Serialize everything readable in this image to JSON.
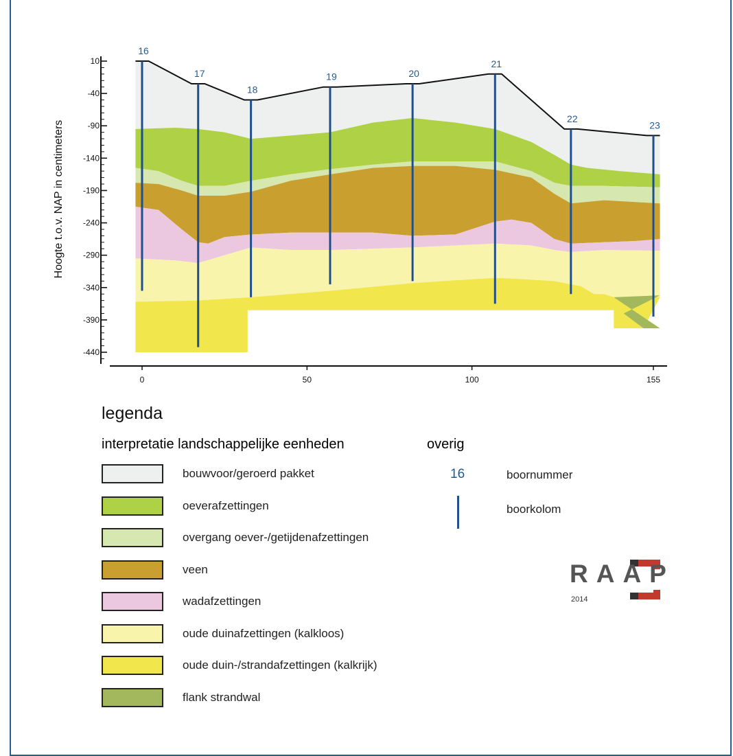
{
  "chart_data": {
    "type": "area",
    "ylabel": "Hoogte t.o.v. NAP in centimeters",
    "yticks": [
      10,
      -40,
      -90,
      -140,
      -190,
      -240,
      -290,
      -340,
      -390,
      -440
    ],
    "xticks": [
      0,
      50,
      100,
      155
    ],
    "xlim": [
      -2,
      158
    ],
    "ylim": [
      -455,
      15
    ],
    "boreholes": [
      {
        "label": "16",
        "x": 0,
        "top": 10,
        "bottom": -345
      },
      {
        "label": "17",
        "x": 17,
        "top": -25,
        "bottom": -432
      },
      {
        "label": "18",
        "x": 33,
        "top": -50,
        "bottom": -355
      },
      {
        "label": "19",
        "x": 57,
        "top": -30,
        "bottom": -335
      },
      {
        "label": "20",
        "x": 82,
        "top": -25,
        "bottom": -330
      },
      {
        "label": "21",
        "x": 107,
        "top": -10,
        "bottom": -365
      },
      {
        "label": "22",
        "x": 130,
        "top": -95,
        "bottom": -350
      },
      {
        "label": "23",
        "x": 155,
        "top": -105,
        "bottom": -385
      }
    ],
    "layers": [
      {
        "key": "bouwvoor",
        "top": [
          [
            -2,
            10
          ],
          [
            2,
            10
          ],
          [
            15,
            -25
          ],
          [
            19,
            -25
          ],
          [
            31,
            -50
          ],
          [
            35,
            -50
          ],
          [
            55,
            -30
          ],
          [
            59,
            -30
          ],
          [
            80,
            -25
          ],
          [
            84,
            -25
          ],
          [
            105,
            -10
          ],
          [
            109,
            -10
          ],
          [
            128,
            -95
          ],
          [
            132,
            -95
          ],
          [
            153,
            -105
          ],
          [
            157,
            -105
          ]
        ],
        "bottom": [
          [
            -2,
            -95
          ],
          [
            10,
            -93
          ],
          [
            17,
            -95
          ],
          [
            25,
            -100
          ],
          [
            33,
            -110
          ],
          [
            45,
            -105
          ],
          [
            57,
            -100
          ],
          [
            70,
            -85
          ],
          [
            82,
            -78
          ],
          [
            95,
            -85
          ],
          [
            107,
            -95
          ],
          [
            118,
            -115
          ],
          [
            125,
            -135
          ],
          [
            130,
            -150
          ],
          [
            135,
            -155
          ],
          [
            145,
            -160
          ],
          [
            157,
            -165
          ]
        ]
      },
      {
        "key": "oever",
        "top": [
          [
            -2,
            -95
          ],
          [
            10,
            -93
          ],
          [
            17,
            -95
          ],
          [
            25,
            -100
          ],
          [
            33,
            -110
          ],
          [
            45,
            -105
          ],
          [
            57,
            -100
          ],
          [
            70,
            -85
          ],
          [
            82,
            -78
          ],
          [
            95,
            -85
          ],
          [
            107,
            -95
          ],
          [
            118,
            -115
          ],
          [
            125,
            -135
          ],
          [
            130,
            -150
          ],
          [
            135,
            -155
          ],
          [
            145,
            -160
          ],
          [
            157,
            -165
          ]
        ],
        "bottom": [
          [
            -2,
            -155
          ],
          [
            5,
            -160
          ],
          [
            12,
            -175
          ],
          [
            17,
            -183
          ],
          [
            25,
            -183
          ],
          [
            33,
            -175
          ],
          [
            45,
            -165
          ],
          [
            57,
            -157
          ],
          [
            70,
            -150
          ],
          [
            82,
            -145
          ],
          [
            95,
            -145
          ],
          [
            107,
            -145
          ],
          [
            118,
            -160
          ],
          [
            125,
            -178
          ],
          [
            130,
            -183
          ],
          [
            140,
            -183
          ],
          [
            157,
            -185
          ]
        ]
      },
      {
        "key": "overgang",
        "top": [
          [
            -2,
            -155
          ],
          [
            5,
            -160
          ],
          [
            12,
            -175
          ],
          [
            17,
            -183
          ],
          [
            25,
            -183
          ],
          [
            33,
            -175
          ],
          [
            45,
            -165
          ],
          [
            57,
            -157
          ],
          [
            70,
            -150
          ],
          [
            82,
            -145
          ],
          [
            95,
            -145
          ],
          [
            107,
            -145
          ],
          [
            118,
            -160
          ],
          [
            125,
            -178
          ],
          [
            130,
            -183
          ],
          [
            140,
            -183
          ],
          [
            157,
            -185
          ]
        ],
        "bottom": [
          [
            -2,
            -178
          ],
          [
            5,
            -180
          ],
          [
            12,
            -190
          ],
          [
            17,
            -198
          ],
          [
            25,
            -198
          ],
          [
            33,
            -192
          ],
          [
            45,
            -175
          ],
          [
            57,
            -165
          ],
          [
            70,
            -155
          ],
          [
            82,
            -152
          ],
          [
            95,
            -152
          ],
          [
            107,
            -158
          ],
          [
            118,
            -170
          ],
          [
            125,
            -195
          ],
          [
            130,
            -210
          ],
          [
            140,
            -205
          ],
          [
            157,
            -210
          ]
        ]
      },
      {
        "key": "veen",
        "top": [
          [
            -2,
            -178
          ],
          [
            5,
            -180
          ],
          [
            12,
            -190
          ],
          [
            17,
            -198
          ],
          [
            25,
            -198
          ],
          [
            33,
            -192
          ],
          [
            45,
            -175
          ],
          [
            57,
            -165
          ],
          [
            70,
            -155
          ],
          [
            82,
            -152
          ],
          [
            95,
            -152
          ],
          [
            107,
            -158
          ],
          [
            118,
            -170
          ],
          [
            125,
            -195
          ],
          [
            130,
            -210
          ],
          [
            140,
            -205
          ],
          [
            157,
            -210
          ]
        ],
        "bottom": [
          [
            -2,
            -215
          ],
          [
            5,
            -220
          ],
          [
            12,
            -250
          ],
          [
            17,
            -270
          ],
          [
            20,
            -272
          ],
          [
            25,
            -262
          ],
          [
            33,
            -258
          ],
          [
            45,
            -255
          ],
          [
            57,
            -255
          ],
          [
            70,
            -255
          ],
          [
            82,
            -260
          ],
          [
            95,
            -258
          ],
          [
            107,
            -238
          ],
          [
            112,
            -235
          ],
          [
            118,
            -240
          ],
          [
            125,
            -265
          ],
          [
            130,
            -272
          ],
          [
            140,
            -270
          ],
          [
            150,
            -268
          ],
          [
            157,
            -265
          ]
        ]
      },
      {
        "key": "wad",
        "top": [
          [
            -2,
            -215
          ],
          [
            5,
            -220
          ],
          [
            12,
            -250
          ],
          [
            17,
            -270
          ],
          [
            20,
            -272
          ],
          [
            25,
            -262
          ],
          [
            33,
            -258
          ],
          [
            45,
            -255
          ],
          [
            57,
            -255
          ],
          [
            70,
            -255
          ],
          [
            82,
            -260
          ],
          [
            95,
            -258
          ],
          [
            107,
            -238
          ],
          [
            112,
            -235
          ],
          [
            118,
            -240
          ],
          [
            125,
            -265
          ],
          [
            130,
            -272
          ],
          [
            140,
            -270
          ],
          [
            150,
            -268
          ],
          [
            157,
            -265
          ]
        ],
        "bottom": [
          [
            -2,
            -295
          ],
          [
            10,
            -298
          ],
          [
            17,
            -302
          ],
          [
            25,
            -290
          ],
          [
            33,
            -278
          ],
          [
            45,
            -282
          ],
          [
            57,
            -282
          ],
          [
            70,
            -280
          ],
          [
            82,
            -278
          ],
          [
            95,
            -275
          ],
          [
            107,
            -272
          ],
          [
            118,
            -275
          ],
          [
            125,
            -282
          ],
          [
            130,
            -285
          ],
          [
            140,
            -282
          ],
          [
            157,
            -283
          ]
        ]
      },
      {
        "key": "oudeduin",
        "top": [
          [
            -2,
            -295
          ],
          [
            10,
            -298
          ],
          [
            17,
            -302
          ],
          [
            25,
            -290
          ],
          [
            33,
            -278
          ],
          [
            45,
            -282
          ],
          [
            57,
            -282
          ],
          [
            70,
            -280
          ],
          [
            82,
            -278
          ],
          [
            95,
            -275
          ],
          [
            107,
            -272
          ],
          [
            118,
            -275
          ],
          [
            125,
            -282
          ],
          [
            130,
            -285
          ],
          [
            140,
            -282
          ],
          [
            157,
            -283
          ]
        ],
        "bottom": [
          [
            -2,
            -362
          ],
          [
            17,
            -360
          ],
          [
            33,
            -355
          ],
          [
            57,
            -345
          ],
          [
            82,
            -333
          ],
          [
            107,
            -325
          ],
          [
            112,
            -326
          ],
          [
            125,
            -330
          ],
          [
            133,
            -338
          ],
          [
            137,
            -350
          ],
          [
            140,
            -350
          ],
          [
            143,
            -355
          ],
          [
            150,
            -355
          ],
          [
            157,
            -355
          ]
        ]
      },
      {
        "key": "strand",
        "top": [
          [
            -2,
            -362
          ],
          [
            17,
            -360
          ],
          [
            33,
            -355
          ],
          [
            57,
            -345
          ],
          [
            82,
            -333
          ],
          [
            107,
            -325
          ],
          [
            112,
            -326
          ],
          [
            125,
            -330
          ],
          [
            133,
            -338
          ],
          [
            137,
            -350
          ],
          [
            140,
            -350
          ],
          [
            143,
            -355
          ],
          [
            150,
            -355
          ],
          [
            157,
            -355
          ]
        ],
        "bottom": [
          [
            -2,
            -440
          ],
          [
            32,
            -440
          ],
          [
            32,
            -375
          ],
          [
            143,
            -375
          ],
          [
            143,
            -403
          ],
          [
            152,
            -403
          ]
        ]
      },
      {
        "key": "flank",
        "top": [
          [
            143,
            -355
          ],
          [
            157,
            -352
          ]
        ],
        "bottom": [
          [
            157,
            -403
          ],
          [
            152,
            -403
          ],
          [
            146,
            -380
          ]
        ]
      }
    ]
  },
  "legend": {
    "title": "legenda",
    "heading_units": "interpretatie landschappelijke eenheden",
    "heading_other": "overig",
    "items": [
      {
        "key": "bouwvoor",
        "label": "bouwvoor/geroerd pakket",
        "color": "#eef0f0"
      },
      {
        "key": "oever",
        "label": "oeverafzettingen",
        "color": "#aed145"
      },
      {
        "key": "overgang",
        "label": "overgang oever-/getijdenafzettingen",
        "color": "#d6e8b0"
      },
      {
        "key": "veen",
        "label": "veen",
        "color": "#c9a030"
      },
      {
        "key": "wad",
        "label": "wadafzettingen",
        "color": "#ebc8df"
      },
      {
        "key": "oudeduin",
        "label": "oude duinafzettingen (kalkloos)",
        "color": "#f8f4ac"
      },
      {
        "key": "strand",
        "label": "oude duin-/strandafzettingen (kalkrijk)",
        "color": "#f1e64b"
      },
      {
        "key": "flank",
        "label": "flank strandwal",
        "color": "#a3b85c"
      }
    ],
    "other": {
      "number_example": "16",
      "number_label": "boornummer",
      "column_label": "boorkolom",
      "number_color": "#1f5a94",
      "column_color": "#1f4f8c"
    }
  },
  "logo": {
    "text": "RAAP",
    "year": "2014"
  }
}
